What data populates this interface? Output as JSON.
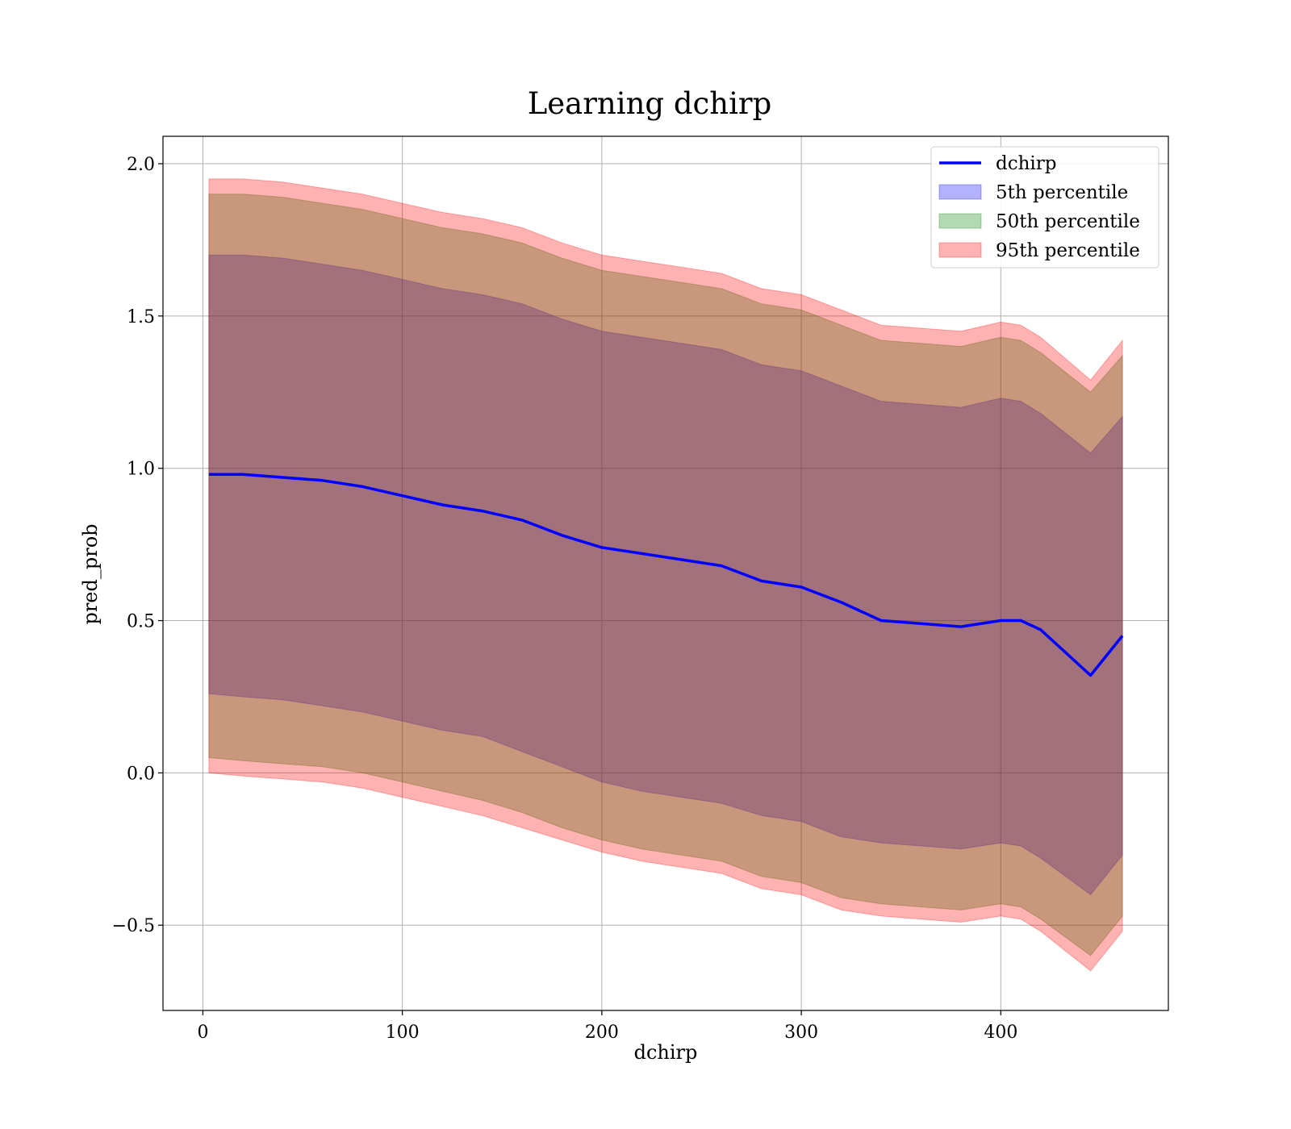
{
  "chart_data": {
    "type": "area",
    "title": "Learning dchirp",
    "xlabel": "dchirp",
    "ylabel": "pred_prob",
    "xlim": [
      -20,
      484
    ],
    "ylim": [
      -0.78,
      2.09
    ],
    "xticks": [
      0,
      100,
      200,
      300,
      400
    ],
    "yticks": [
      -0.5,
      0.0,
      0.5,
      1.0,
      1.5,
      2.0
    ],
    "xtick_labels": [
      "0",
      "100",
      "200",
      "300",
      "400"
    ],
    "ytick_labels": [
      "−0.5",
      "0.0",
      "0.5",
      "1.0",
      "1.5",
      "2.0"
    ],
    "grid": true,
    "legend_position": "top-right",
    "x": [
      3,
      20,
      40,
      60,
      80,
      100,
      120,
      140,
      160,
      180,
      200,
      220,
      240,
      260,
      280,
      300,
      320,
      340,
      360,
      380,
      400,
      410,
      420,
      445,
      461
    ],
    "series": [
      {
        "name": "dchirp",
        "kind": "line",
        "color": "#0000ff",
        "values": [
          0.98,
          0.98,
          0.97,
          0.96,
          0.94,
          0.91,
          0.88,
          0.86,
          0.83,
          0.78,
          0.74,
          0.72,
          0.7,
          0.68,
          0.63,
          0.61,
          0.56,
          0.5,
          0.49,
          0.48,
          0.5,
          0.5,
          0.47,
          0.32,
          0.45
        ]
      },
      {
        "name": "5th percentile",
        "kind": "band",
        "color": "#0000ff",
        "lower": [
          0.26,
          0.25,
          0.24,
          0.22,
          0.2,
          0.17,
          0.14,
          0.12,
          0.07,
          0.02,
          -0.03,
          -0.06,
          -0.08,
          -0.1,
          -0.14,
          -0.16,
          -0.21,
          -0.23,
          -0.24,
          -0.25,
          -0.23,
          -0.24,
          -0.28,
          -0.4,
          -0.27
        ],
        "upper": [
          1.7,
          1.7,
          1.69,
          1.67,
          1.65,
          1.62,
          1.59,
          1.57,
          1.54,
          1.49,
          1.45,
          1.43,
          1.41,
          1.39,
          1.34,
          1.32,
          1.27,
          1.22,
          1.21,
          1.2,
          1.23,
          1.22,
          1.18,
          1.05,
          1.17
        ]
      },
      {
        "name": "50th percentile",
        "kind": "band",
        "color": "#008000",
        "lower": [
          0.05,
          0.04,
          0.03,
          0.02,
          0.0,
          -0.03,
          -0.06,
          -0.09,
          -0.13,
          -0.18,
          -0.22,
          -0.25,
          -0.27,
          -0.29,
          -0.34,
          -0.36,
          -0.41,
          -0.43,
          -0.44,
          -0.45,
          -0.43,
          -0.44,
          -0.48,
          -0.6,
          -0.47
        ],
        "upper": [
          1.9,
          1.9,
          1.89,
          1.87,
          1.85,
          1.82,
          1.79,
          1.77,
          1.74,
          1.69,
          1.65,
          1.63,
          1.61,
          1.59,
          1.54,
          1.52,
          1.47,
          1.42,
          1.41,
          1.4,
          1.43,
          1.42,
          1.38,
          1.25,
          1.37
        ]
      },
      {
        "name": "95th percentile",
        "kind": "band",
        "color": "#ff0000",
        "lower": [
          0.0,
          -0.01,
          -0.02,
          -0.03,
          -0.05,
          -0.08,
          -0.11,
          -0.14,
          -0.18,
          -0.22,
          -0.26,
          -0.29,
          -0.31,
          -0.33,
          -0.38,
          -0.4,
          -0.45,
          -0.47,
          -0.48,
          -0.49,
          -0.47,
          -0.48,
          -0.52,
          -0.65,
          -0.52
        ],
        "upper": [
          1.95,
          1.95,
          1.94,
          1.92,
          1.9,
          1.87,
          1.84,
          1.82,
          1.79,
          1.74,
          1.7,
          1.68,
          1.66,
          1.64,
          1.59,
          1.57,
          1.52,
          1.47,
          1.46,
          1.45,
          1.48,
          1.47,
          1.43,
          1.29,
          1.42
        ]
      }
    ]
  }
}
